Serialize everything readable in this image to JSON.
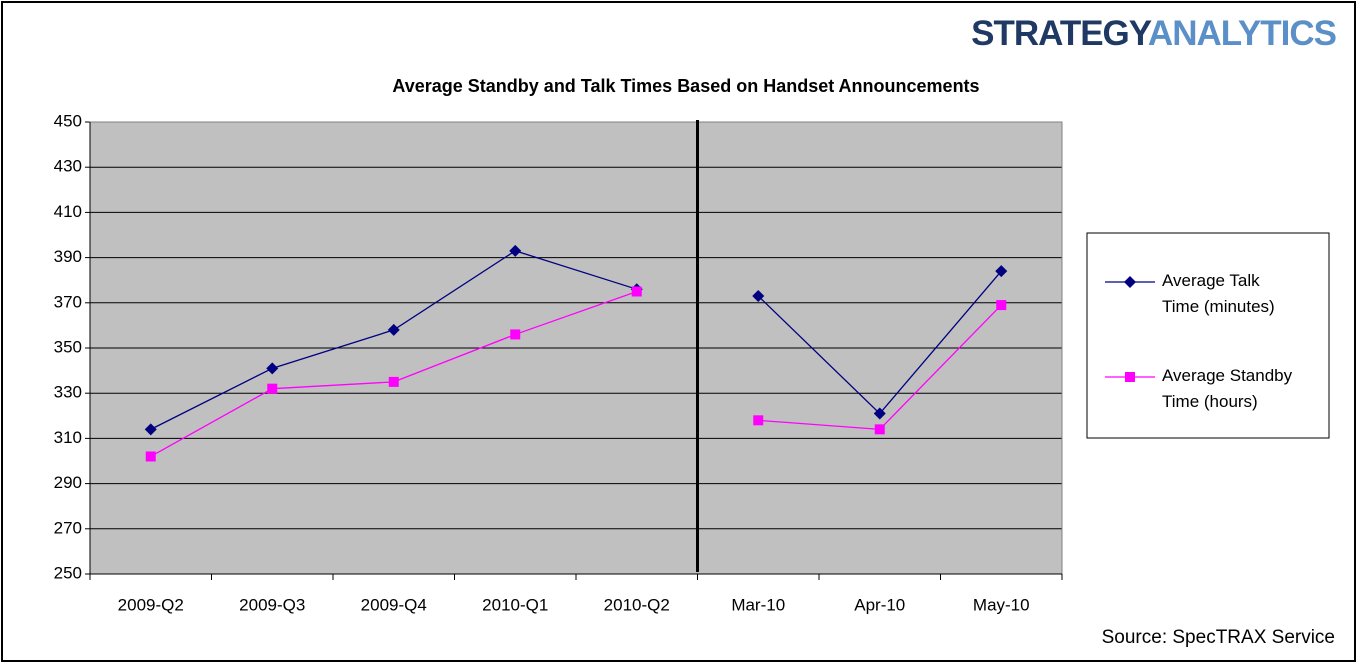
{
  "brand": [
    "STRATEGY",
    "ANALYTICS"
  ],
  "source": "Source: SpecTRAX Service",
  "chart_data": [
    {
      "type": "line",
      "title": "Average Standby and Talk Times Based on Handset Announcements",
      "categories": [
        "2009-Q2",
        "2009-Q3",
        "2009-Q4",
        "2010-Q1",
        "2010-Q2"
      ],
      "ylim": [
        250,
        450
      ],
      "yticks": [
        250,
        270,
        290,
        310,
        330,
        350,
        370,
        390,
        410,
        430,
        450
      ],
      "grid": true,
      "series": [
        {
          "color": "#000080",
          "marker": "diamond",
          "values": [
            314,
            341,
            358,
            393,
            376
          ]
        },
        {
          "color": "#ff00ff",
          "marker": "square",
          "values": [
            302,
            332,
            335,
            356,
            375
          ]
        }
      ]
    },
    {
      "type": "line",
      "categories": [
        "Mar-10",
        "Apr-10",
        "May-10"
      ],
      "ylim": [
        250,
        450
      ],
      "legend": "right",
      "series": [
        {
          "name": "Average Talk Time (minutes)",
          "color": "#000080",
          "marker": "diamond",
          "values": [
            373,
            321,
            384
          ]
        },
        {
          "name": "Average Standby Time (hours)",
          "color": "#ff00ff",
          "marker": "square",
          "values": [
            318,
            314,
            369
          ]
        }
      ]
    }
  ]
}
